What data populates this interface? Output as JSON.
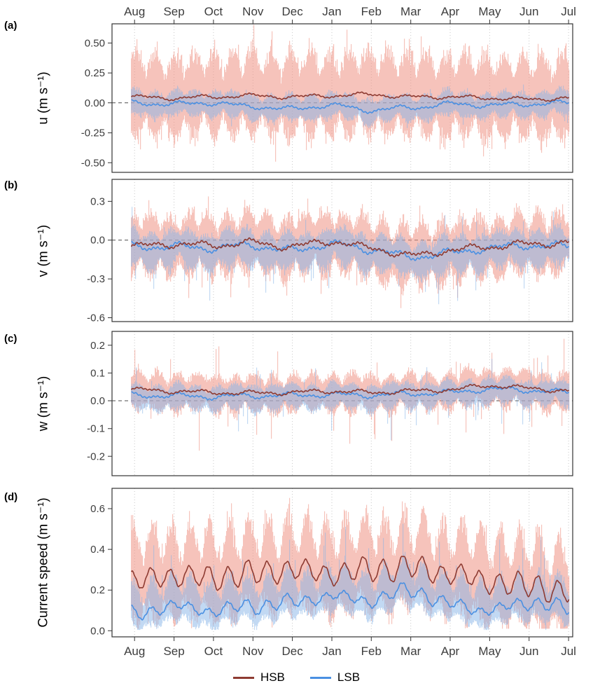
{
  "figure": {
    "panel_labels": [
      "(a)",
      "(b)",
      "(c)",
      "(d)"
    ],
    "x_months": [
      "Aug",
      "Sep",
      "Oct",
      "Nov",
      "Dec",
      "Jan",
      "Feb",
      "Mar",
      "Apr",
      "May",
      "Jun",
      "Jul"
    ],
    "legend": [
      {
        "label": "HSB",
        "color": "#8e3b32"
      },
      {
        "label": "LSB",
        "color": "#4a90e2"
      }
    ],
    "legend_position": "bottom",
    "colors": {
      "grid": "#c8c8c8",
      "axis": "#333333",
      "text": "#3d3d3d",
      "zero_line": "#4d4d4d",
      "background": "#ffffff"
    }
  },
  "chart_data": [
    {
      "type": "line",
      "id": "u",
      "ylabel": "u (m s⁻¹)",
      "ylim": [
        -0.58,
        0.66
      ],
      "ytick_values": [
        0.5,
        0.25,
        0.0,
        -0.25,
        -0.5
      ],
      "ytick_labels": [
        "0.50",
        "0.25",
        "0.00",
        "-0.25",
        "-0.50"
      ],
      "zero_dashed": true,
      "sn_phase": 0.8,
      "series": [
        {
          "name": "HSB",
          "line_color": "#8e3b32",
          "fill_color": "#ef9183",
          "fill_opacity": 0.55,
          "mean_monthly": [
            0.05,
            0.04,
            0.05,
            0.06,
            0.05,
            0.06,
            0.07,
            0.05,
            0.05,
            0.04,
            0.03,
            0.04
          ],
          "mean_wiggle": 0.012,
          "mean_sn": 0,
          "env_amp": 0.44,
          "env_asym_up": 1.15,
          "env_asym_dn": 1.05,
          "spike_prob": 0.05,
          "spike_factor": 1.35,
          "spike_dn_bias": 0.5,
          "floor": null
        },
        {
          "name": "LSB",
          "line_color": "#4a90e2",
          "fill_color": "#86b4e8",
          "fill_opacity": 0.5,
          "mean_monthly": [
            0.0,
            -0.01,
            0.0,
            -0.03,
            -0.05,
            -0.02,
            -0.06,
            -0.04,
            -0.01,
            -0.02,
            -0.01,
            0.0
          ],
          "mean_wiggle": 0.015,
          "mean_sn": 0,
          "env_amp": 0.15,
          "env_asym_up": 1.0,
          "env_asym_dn": 1.0,
          "spike_prob": 0.03,
          "spike_factor": 1.5,
          "spike_dn_bias": 0.5,
          "floor": null
        }
      ]
    },
    {
      "type": "line",
      "id": "v",
      "ylabel": "v (m s⁻¹)",
      "ylim": [
        -0.63,
        0.47
      ],
      "ytick_values": [
        0.3,
        0.0,
        -0.3,
        -0.6
      ],
      "ytick_labels": [
        "0.3",
        "0.0",
        "-0.3",
        "-0.6"
      ],
      "zero_dashed": true,
      "sn_phase": 1.6,
      "series": [
        {
          "name": "HSB",
          "line_color": "#8e3b32",
          "fill_color": "#ef9183",
          "fill_opacity": 0.55,
          "mean_monthly": [
            -0.05,
            -0.03,
            -0.04,
            -0.02,
            -0.05,
            -0.01,
            -0.06,
            -0.12,
            -0.08,
            -0.05,
            -0.03,
            -0.02
          ],
          "mean_wiggle": 0.02,
          "mean_sn": 0,
          "env_amp": 0.26,
          "env_asym_up": 1.25,
          "env_asym_dn": 1.3,
          "spike_prob": 0.05,
          "spike_factor": 1.5,
          "spike_dn_bias": 0.55,
          "floor": null
        },
        {
          "name": "LSB",
          "line_color": "#4a90e2",
          "fill_color": "#86b4e8",
          "fill_opacity": 0.5,
          "mean_monthly": [
            -0.05,
            -0.05,
            -0.06,
            -0.04,
            -0.08,
            -0.03,
            -0.07,
            -0.13,
            -0.1,
            -0.06,
            -0.04,
            -0.05
          ],
          "mean_wiggle": 0.022,
          "mean_sn": 0,
          "env_amp": 0.17,
          "env_asym_up": 1.0,
          "env_asym_dn": 1.35,
          "spike_prob": 0.06,
          "spike_factor": 1.9,
          "spike_dn_bias": 0.8,
          "floor": null
        }
      ]
    },
    {
      "type": "line",
      "id": "w",
      "ylabel": "w (m s⁻¹)",
      "ylim": [
        -0.27,
        0.25
      ],
      "ytick_values": [
        0.2,
        0.1,
        0.0,
        -0.1,
        -0.2
      ],
      "ytick_labels": [
        "0.2",
        "0.1",
        "0.0",
        "-0.1",
        "-0.2"
      ],
      "zero_dashed": true,
      "sn_phase": 0.4,
      "series": [
        {
          "name": "HSB",
          "line_color": "#8e3b32",
          "fill_color": "#ef9183",
          "fill_opacity": 0.55,
          "mean_monthly": [
            0.04,
            0.035,
            0.03,
            0.028,
            0.03,
            0.035,
            0.03,
            0.035,
            0.04,
            0.055,
            0.045,
            0.035
          ],
          "mean_wiggle": 0.006,
          "mean_sn": 0,
          "env_amp": 0.065,
          "env_asym_up": 1.35,
          "env_asym_dn": 1.55,
          "spike_prob": 0.05,
          "spike_factor": 2.3,
          "spike_dn_bias": 0.5,
          "floor": null
        },
        {
          "name": "LSB",
          "line_color": "#4a90e2",
          "fill_color": "#86b4e8",
          "fill_opacity": 0.5,
          "mean_monthly": [
            0.02,
            0.018,
            0.015,
            0.018,
            0.02,
            0.022,
            0.02,
            0.025,
            0.03,
            0.042,
            0.038,
            0.03
          ],
          "mean_wiggle": 0.007,
          "mean_sn": 0,
          "env_amp": 0.05,
          "env_asym_up": 1.1,
          "env_asym_dn": 1.5,
          "spike_prob": 0.05,
          "spike_factor": 2.4,
          "spike_dn_bias": 0.75,
          "floor": null
        }
      ]
    },
    {
      "type": "line",
      "id": "current_speed",
      "ylabel": "Current speed (m s⁻¹)",
      "ylim": [
        -0.03,
        0.7
      ],
      "ytick_values": [
        0.0,
        0.2,
        0.4,
        0.6
      ],
      "ytick_labels": [
        "0.0",
        "0.2",
        "0.4",
        "0.6"
      ],
      "zero_dashed": false,
      "sn_phase": 1.1,
      "series": [
        {
          "name": "HSB",
          "line_color": "#8e3b32",
          "fill_color": "#ef9183",
          "fill_opacity": 0.55,
          "mean_monthly": [
            0.24,
            0.27,
            0.26,
            0.28,
            0.3,
            0.28,
            0.3,
            0.31,
            0.28,
            0.24,
            0.22,
            0.19
          ],
          "mean_wiggle": 0.012,
          "mean_sn": 0.05,
          "env_amp": 0.2,
          "env_asym_up": 1.55,
          "env_asym_dn": 1.4,
          "spike_prob": 0.05,
          "spike_factor": 1.35,
          "spike_dn_bias": 0.2,
          "floor": 0.01
        },
        {
          "name": "LSB",
          "line_color": "#4a90e2",
          "fill_color": "#86b4e8",
          "fill_opacity": 0.5,
          "mean_monthly": [
            0.08,
            0.12,
            0.1,
            0.12,
            0.14,
            0.17,
            0.15,
            0.2,
            0.13,
            0.1,
            0.14,
            0.11
          ],
          "mean_wiggle": 0.012,
          "mean_sn": 0.025,
          "env_amp": 0.11,
          "env_asym_up": 1.7,
          "env_asym_dn": 1.0,
          "spike_prob": 0.06,
          "spike_factor": 2.0,
          "spike_dn_bias": 0.2,
          "floor": 0.004
        }
      ]
    }
  ]
}
